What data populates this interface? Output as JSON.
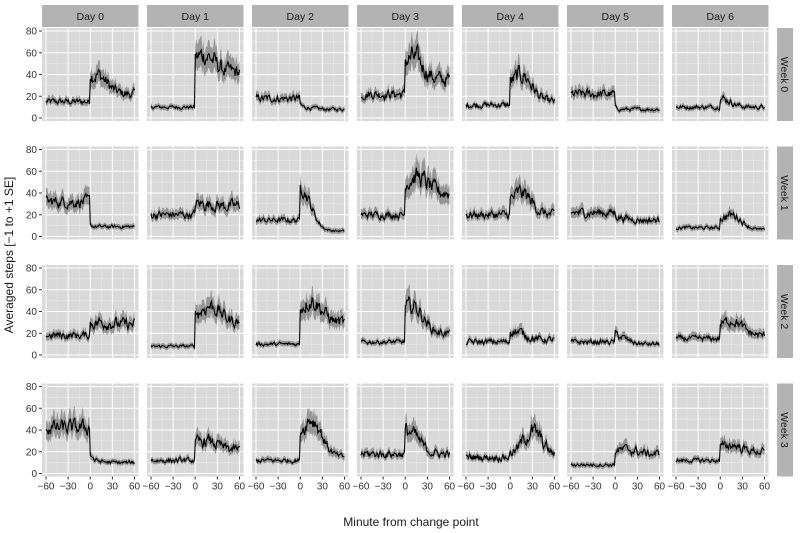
{
  "chart_data": {
    "type": "line",
    "facet_columns": [
      "Day 0",
      "Day 1",
      "Day 2",
      "Day 3",
      "Day 4",
      "Day 5",
      "Day 6"
    ],
    "facet_rows": [
      "Week 0",
      "Week 1",
      "Week 2",
      "Week 3"
    ],
    "xlabel": "Minute from change point",
    "ylabel": "Averaged steps [−1 to +1 SE]",
    "xlim": [
      -60,
      60
    ],
    "ylim": [
      0,
      80
    ],
    "x_ticks": [
      "−60",
      "−30",
      "0",
      "30",
      "60"
    ],
    "y_ticks": [
      "0",
      "20",
      "40",
      "60",
      "80"
    ],
    "band": "±1 SE",
    "grid": true,
    "background": "#d9d9d9",
    "strip_fill": "#b3b3b3",
    "line_color": "#000000",
    "band_color": "#7f7f7f",
    "panel_profiles": [
      [
        {
          "pre": 15,
          "peak": 40,
          "peak_at": 8,
          "post": 22,
          "noise": 0.35
        },
        {
          "pre": 10,
          "peak": 58,
          "peak_at": 12,
          "post": 42,
          "noise": 0.3
        },
        {
          "pre": 18,
          "peak": 20,
          "peak_at": 0,
          "post": 8,
          "noise": 0.35
        },
        {
          "pre": 22,
          "peak": 55,
          "peak_at": 10,
          "post": 35,
          "noise": 0.35
        },
        {
          "pre": 12,
          "peak": 40,
          "peak_at": 15,
          "post": 15,
          "noise": 0.4
        },
        {
          "pre": 22,
          "peak": 15,
          "peak_at": 0,
          "post": 8,
          "noise": 0.35
        },
        {
          "pre": 10,
          "peak": 18,
          "peak_at": 0,
          "post": 10,
          "noise": 0.35
        }
      ],
      [
        {
          "pre": 32,
          "peak": 12,
          "peak_at": 0,
          "post": 9,
          "noise": 0.3
        },
        {
          "pre": 20,
          "peak": 30,
          "peak_at": 10,
          "post": 28,
          "noise": 0.35
        },
        {
          "pre": 15,
          "peak": 55,
          "peak_at": 0,
          "post": 5,
          "noise": 0.3
        },
        {
          "pre": 20,
          "peak": 55,
          "peak_at": 15,
          "post": 40,
          "noise": 0.3
        },
        {
          "pre": 20,
          "peak": 40,
          "peak_at": 15,
          "post": 20,
          "noise": 0.35
        },
        {
          "pre": 22,
          "peak": 25,
          "peak_at": 0,
          "post": 15,
          "noise": 0.35
        },
        {
          "pre": 8,
          "peak": 22,
          "peak_at": 15,
          "post": 6,
          "noise": 0.35
        }
      ],
      [
        {
          "pre": 18,
          "peak": 30,
          "peak_at": 15,
          "post": 28,
          "noise": 0.35
        },
        {
          "pre": 8,
          "peak": 45,
          "peak_at": 20,
          "post": 30,
          "noise": 0.3
        },
        {
          "pre": 10,
          "peak": 50,
          "peak_at": 15,
          "post": 30,
          "noise": 0.3
        },
        {
          "pre": 12,
          "peak": 45,
          "peak_at": 10,
          "post": 20,
          "noise": 0.3
        },
        {
          "pre": 12,
          "peak": 22,
          "peak_at": 5,
          "post": 14,
          "noise": 0.4
        },
        {
          "pre": 12,
          "peak": 20,
          "peak_at": 0,
          "post": 10,
          "noise": 0.35
        },
        {
          "pre": 15,
          "peak": 32,
          "peak_at": 15,
          "post": 18,
          "noise": 0.3
        }
      ],
      [
        {
          "pre": 42,
          "peak": 45,
          "peak_at": -5,
          "post": 10,
          "noise": 0.3
        },
        {
          "pre": 12,
          "peak": 30,
          "peak_at": 15,
          "post": 22,
          "noise": 0.35
        },
        {
          "pre": 12,
          "peak": 50,
          "peak_at": 15,
          "post": 15,
          "noise": 0.3
        },
        {
          "pre": 18,
          "peak": 38,
          "peak_at": 5,
          "post": 18,
          "noise": 0.35
        },
        {
          "pre": 15,
          "peak": 38,
          "peak_at": 30,
          "post": 15,
          "noise": 0.4
        },
        {
          "pre": 8,
          "peak": 22,
          "peak_at": 15,
          "post": 18,
          "noise": 0.35
        },
        {
          "pre": 12,
          "peak": 26,
          "peak_at": 15,
          "post": 20,
          "noise": 0.3
        }
      ]
    ]
  }
}
